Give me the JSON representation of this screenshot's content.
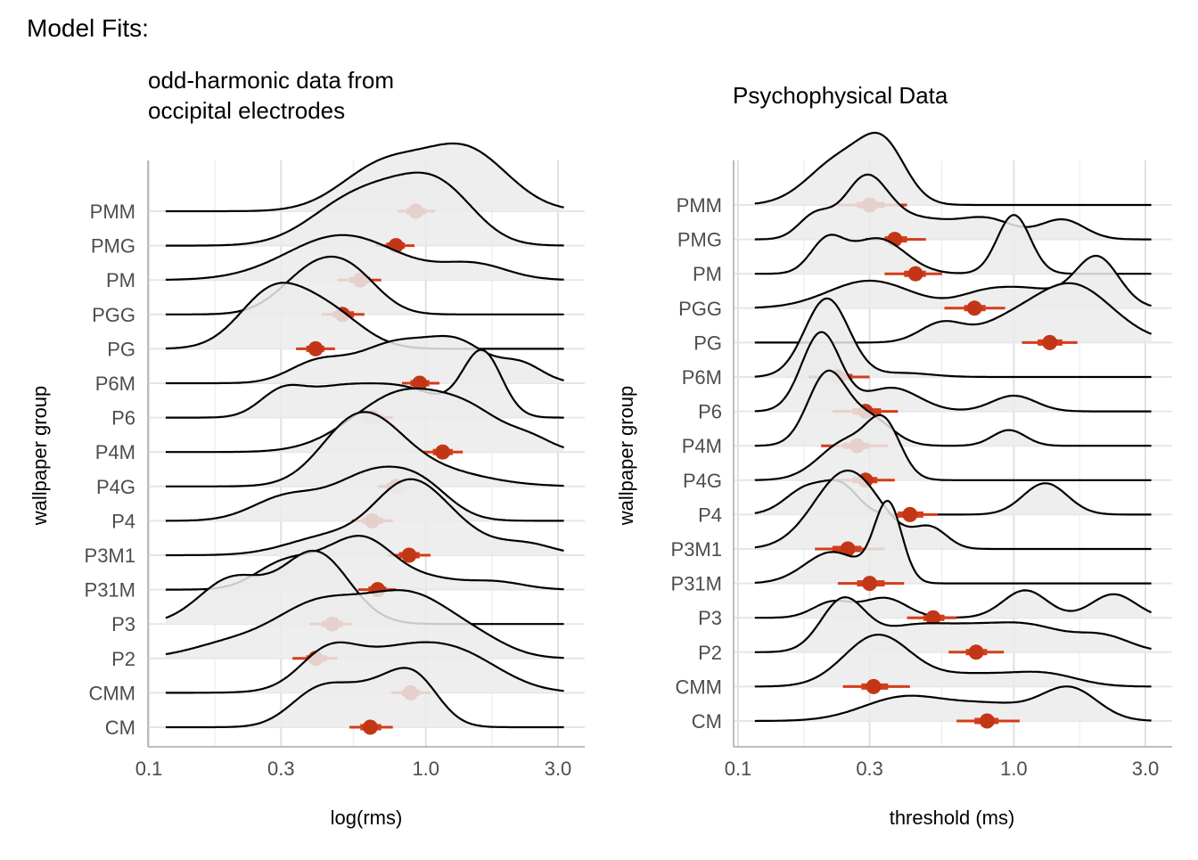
{
  "figure": {
    "title": "Model Fits:"
  },
  "chart_data": [
    {
      "type": "ridgeline",
      "title_lines": [
        "odd-harmonic data from",
        "occipital electrodes"
      ],
      "xlabel": "log(rms)",
      "ylabel": "wallpaper group",
      "x_scale": "log10",
      "xlim": [
        0.1,
        3.0
      ],
      "x_ticks": [
        {
          "value": 0.1,
          "label": "0.1"
        },
        {
          "value": 0.3,
          "label": "0.3"
        },
        {
          "value": 1.0,
          "label": "1.0"
        },
        {
          "value": 3.0,
          "label": "3.0"
        }
      ],
      "grid": true,
      "fill_color": "#ebebeb",
      "line_color": "#000000",
      "estimate_color": "#c23616",
      "interval_color": "#d43d1a",
      "groups": [
        {
          "name": "PMM",
          "estimate": 0.92,
          "inner": [
            0.85,
            1.0
          ],
          "outer": [
            0.79,
            1.08
          ],
          "modes": [
            [
              0.7,
              0.15,
              1.2
            ],
            [
              1.4,
              0.15,
              1.6
            ]
          ]
        },
        {
          "name": "PMG",
          "estimate": 0.78,
          "inner": [
            0.72,
            0.84
          ],
          "outer": [
            0.66,
            0.91
          ],
          "modes": [
            [
              0.52,
              0.15,
              1.0
            ],
            [
              0.88,
              0.15,
              1.2
            ],
            [
              1.2,
              0.12,
              0.8
            ]
          ]
        },
        {
          "name": "PM",
          "estimate": 0.58,
          "inner": [
            0.53,
            0.63
          ],
          "outer": [
            0.48,
            0.69
          ],
          "modes": [
            [
              0.5,
              0.2,
              1.2
            ],
            [
              1.5,
              0.12,
              0.4
            ]
          ]
        },
        {
          "name": "PGG",
          "estimate": 0.5,
          "inner": [
            0.46,
            0.55
          ],
          "outer": [
            0.42,
            0.6
          ],
          "modes": [
            [
              0.4,
              0.12,
              1.2
            ],
            [
              0.56,
              0.1,
              0.7
            ]
          ]
        },
        {
          "name": "PG",
          "estimate": 0.4,
          "inner": [
            0.37,
            0.43
          ],
          "outer": [
            0.34,
            0.47
          ],
          "modes": [
            [
              0.28,
              0.12,
              1.5
            ],
            [
              0.45,
              0.12,
              0.9
            ]
          ]
        },
        {
          "name": "P6M",
          "estimate": 0.95,
          "inner": [
            0.88,
            1.03
          ],
          "outer": [
            0.82,
            1.12
          ],
          "modes": [
            [
              0.4,
              0.1,
              0.5
            ],
            [
              0.8,
              0.15,
              1.1
            ],
            [
              1.35,
              0.1,
              0.8
            ],
            [
              2.2,
              0.08,
              0.5
            ]
          ]
        },
        {
          "name": "P6",
          "estimate": 0.64,
          "inner": [
            0.59,
            0.7
          ],
          "outer": [
            0.54,
            0.76
          ],
          "modes": [
            [
              0.3,
              0.08,
              0.6
            ],
            [
              0.45,
              0.12,
              0.6
            ],
            [
              0.8,
              0.15,
              0.8
            ],
            [
              1.6,
              0.07,
              1.7
            ]
          ]
        },
        {
          "name": "P4M",
          "estimate": 1.15,
          "inner": [
            1.06,
            1.25
          ],
          "outer": [
            0.98,
            1.36
          ],
          "modes": [
            [
              0.6,
              0.15,
              0.5
            ],
            [
              0.9,
              0.15,
              1.3
            ],
            [
              1.5,
              0.12,
              0.8
            ],
            [
              2.4,
              0.08,
              0.3
            ]
          ]
        },
        {
          "name": "P4G",
          "estimate": 0.78,
          "inner": [
            0.72,
            0.85
          ],
          "outer": [
            0.67,
            0.93
          ],
          "modes": [
            [
              0.52,
              0.12,
              1.1
            ],
            [
              0.68,
              0.12,
              0.8
            ],
            [
              0.95,
              0.2,
              0.5
            ]
          ]
        },
        {
          "name": "P4",
          "estimate": 0.64,
          "inner": [
            0.59,
            0.7
          ],
          "outer": [
            0.54,
            0.76
          ],
          "modes": [
            [
              0.31,
              0.12,
              0.6
            ],
            [
              0.66,
              0.15,
              1.3
            ],
            [
              1.0,
              0.1,
              0.5
            ]
          ]
        },
        {
          "name": "P3M1",
          "estimate": 0.87,
          "inner": [
            0.8,
            0.95
          ],
          "outer": [
            0.73,
            1.04
          ],
          "modes": [
            [
              0.45,
              0.15,
              0.5
            ],
            [
              0.85,
              0.12,
              1.7
            ],
            [
              1.25,
              0.12,
              0.6
            ],
            [
              2.3,
              0.1,
              0.3
            ]
          ]
        },
        {
          "name": "P31M",
          "estimate": 0.67,
          "inner": [
            0.62,
            0.72
          ],
          "outer": [
            0.57,
            0.78
          ],
          "modes": [
            [
              0.3,
              0.1,
              0.6
            ],
            [
              0.48,
              0.12,
              0.8
            ],
            [
              0.63,
              0.1,
              0.8
            ],
            [
              1.0,
              0.12,
              0.3
            ],
            [
              1.8,
              0.1,
              0.2
            ]
          ]
        },
        {
          "name": "P3",
          "estimate": 0.46,
          "inner": [
            0.42,
            0.5
          ],
          "outer": [
            0.38,
            0.54
          ],
          "modes": [
            [
              0.2,
              0.12,
              1.2
            ],
            [
              0.4,
              0.12,
              1.9
            ]
          ]
        },
        {
          "name": "P2",
          "estimate": 0.4,
          "inner": [
            0.37,
            0.44
          ],
          "outer": [
            0.33,
            0.48
          ],
          "modes": [
            [
              0.2,
              0.15,
              0.4
            ],
            [
              0.4,
              0.15,
              1.3
            ],
            [
              0.75,
              0.15,
              1.2
            ],
            [
              1.0,
              0.12,
              0.6
            ],
            [
              1.5,
              0.12,
              0.5
            ]
          ]
        },
        {
          "name": "CMM",
          "estimate": 0.88,
          "inner": [
            0.82,
            0.95
          ],
          "outer": [
            0.75,
            1.04
          ],
          "modes": [
            [
              0.44,
              0.1,
              0.8
            ],
            [
              0.8,
              0.2,
              1.1
            ],
            [
              1.4,
              0.15,
              0.6
            ]
          ]
        },
        {
          "name": "CM",
          "estimate": 0.63,
          "inner": [
            0.58,
            0.69
          ],
          "outer": [
            0.53,
            0.76
          ],
          "modes": [
            [
              0.4,
              0.1,
              0.8
            ],
            [
              0.6,
              0.12,
              0.8
            ],
            [
              0.85,
              0.1,
              0.8
            ],
            [
              0.95,
              0.08,
              0.5
            ]
          ]
        }
      ]
    },
    {
      "type": "ridgeline",
      "title_lines": [
        "Psychophysical Data"
      ],
      "xlabel": "threshold (ms)",
      "ylabel": "wallpaper group",
      "x_scale": "log10",
      "xlim": [
        0.1,
        3.0
      ],
      "x_ticks": [
        {
          "value": 0.1,
          "label": "0.1"
        },
        {
          "value": 0.3,
          "label": "0.3"
        },
        {
          "value": 1.0,
          "label": "1.0"
        },
        {
          "value": 3.0,
          "label": "3.0"
        }
      ],
      "grid": true,
      "fill_color": "#ebebeb",
      "line_color": "#000000",
      "estimate_color": "#c23616",
      "interval_color": "#d43d1a",
      "groups": [
        {
          "name": "PMM",
          "estimate": 0.3,
          "inner": [
            0.27,
            0.34
          ],
          "outer": [
            0.23,
            0.41
          ],
          "modes": [
            [
              0.24,
              0.12,
              1.2
            ],
            [
              0.34,
              0.08,
              1.2
            ]
          ]
        },
        {
          "name": "PMG",
          "estimate": 0.37,
          "inner": [
            0.34,
            0.41
          ],
          "outer": [
            0.29,
            0.48
          ],
          "modes": [
            [
              0.19,
              0.06,
              0.6
            ],
            [
              0.29,
              0.08,
              1.5
            ],
            [
              0.45,
              0.12,
              0.5
            ],
            [
              0.8,
              0.1,
              0.5
            ],
            [
              1.5,
              0.08,
              0.5
            ]
          ]
        },
        {
          "name": "PM",
          "estimate": 0.44,
          "inner": [
            0.4,
            0.48
          ],
          "outer": [
            0.34,
            0.55
          ],
          "modes": [
            [
              0.21,
              0.06,
              0.8
            ],
            [
              0.32,
              0.1,
              0.9
            ],
            [
              1.0,
              0.06,
              1.5
            ]
          ]
        },
        {
          "name": "PGG",
          "estimate": 0.72,
          "inner": [
            0.66,
            0.79
          ],
          "outer": [
            0.56,
            0.93
          ],
          "modes": [
            [
              0.3,
              0.15,
              0.7
            ],
            [
              0.8,
              0.1,
              0.4
            ],
            [
              1.2,
              0.1,
              0.4
            ],
            [
              2.0,
              0.08,
              1.3
            ]
          ]
        },
        {
          "name": "PG",
          "estimate": 1.35,
          "inner": [
            1.22,
            1.5
          ],
          "outer": [
            1.07,
            1.7
          ],
          "modes": [
            [
              0.55,
              0.08,
              0.5
            ],
            [
              0.9,
              0.1,
              0.3
            ],
            [
              1.6,
              0.15,
              1.5
            ]
          ]
        },
        {
          "name": "P6M",
          "estimate": 0.23,
          "inner": [
            0.21,
            0.26
          ],
          "outer": [
            0.18,
            0.3
          ],
          "modes": [
            [
              0.21,
              0.08,
              2.0
            ],
            [
              0.4,
              0.1,
              0.1
            ]
          ]
        },
        {
          "name": "P6",
          "estimate": 0.29,
          "inner": [
            0.26,
            0.33
          ],
          "outer": [
            0.22,
            0.38
          ],
          "modes": [
            [
              0.2,
              0.07,
              2.0
            ],
            [
              0.36,
              0.1,
              0.6
            ],
            [
              1.0,
              0.08,
              0.4
            ]
          ]
        },
        {
          "name": "P4M",
          "estimate": 0.27,
          "inner": [
            0.24,
            0.3
          ],
          "outer": [
            0.2,
            0.35
          ],
          "modes": [
            [
              0.21,
              0.07,
              1.8
            ],
            [
              0.3,
              0.08,
              0.7
            ],
            [
              0.96,
              0.06,
              0.4
            ]
          ]
        },
        {
          "name": "P4G",
          "estimate": 0.29,
          "inner": [
            0.26,
            0.32
          ],
          "outer": [
            0.22,
            0.37
          ],
          "modes": [
            [
              0.25,
              0.1,
              1.0
            ],
            [
              0.34,
              0.06,
              1.2
            ]
          ]
        },
        {
          "name": "P4",
          "estimate": 0.42,
          "inner": [
            0.38,
            0.47
          ],
          "outer": [
            0.33,
            0.53
          ],
          "modes": [
            [
              0.18,
              0.08,
              0.7
            ],
            [
              0.24,
              0.06,
              0.6
            ],
            [
              1.3,
              0.08,
              0.8
            ]
          ]
        },
        {
          "name": "P3M1",
          "estimate": 0.25,
          "inner": [
            0.22,
            0.28
          ],
          "outer": [
            0.19,
            0.34
          ],
          "modes": [
            [
              0.25,
              0.12,
              2.0
            ],
            [
              0.5,
              0.06,
              0.5
            ]
          ]
        },
        {
          "name": "P31M",
          "estimate": 0.3,
          "inner": [
            0.27,
            0.34
          ],
          "outer": [
            0.23,
            0.4
          ],
          "modes": [
            [
              0.22,
              0.1,
              0.8
            ],
            [
              0.35,
              0.05,
              2.0
            ]
          ]
        },
        {
          "name": "P3",
          "estimate": 0.51,
          "inner": [
            0.47,
            0.56
          ],
          "outer": [
            0.41,
            0.62
          ],
          "modes": [
            [
              0.22,
              0.07,
              0.4
            ],
            [
              0.34,
              0.08,
              0.5
            ],
            [
              1.1,
              0.08,
              0.7
            ],
            [
              2.3,
              0.08,
              0.6
            ]
          ]
        },
        {
          "name": "P2",
          "estimate": 0.73,
          "inner": [
            0.67,
            0.8
          ],
          "outer": [
            0.58,
            0.92
          ],
          "modes": [
            [
              0.24,
              0.08,
              1.3
            ],
            [
              0.4,
              0.12,
              0.5
            ],
            [
              0.7,
              0.15,
              0.6
            ],
            [
              1.2,
              0.12,
              0.5
            ],
            [
              2.1,
              0.1,
              0.4
            ]
          ]
        },
        {
          "name": "CMM",
          "estimate": 0.31,
          "inner": [
            0.28,
            0.35
          ],
          "outer": [
            0.24,
            0.42
          ],
          "modes": [
            [
              0.32,
              0.12,
              1.3
            ],
            [
              0.7,
              0.15,
              0.3
            ],
            [
              1.3,
              0.12,
              0.3
            ]
          ]
        },
        {
          "name": "CM",
          "estimate": 0.8,
          "inner": [
            0.72,
            0.88
          ],
          "outer": [
            0.62,
            1.05
          ],
          "modes": [
            [
              0.4,
              0.15,
              0.6
            ],
            [
              0.85,
              0.15,
              0.4
            ],
            [
              1.6,
              0.1,
              0.8
            ]
          ]
        }
      ]
    }
  ]
}
